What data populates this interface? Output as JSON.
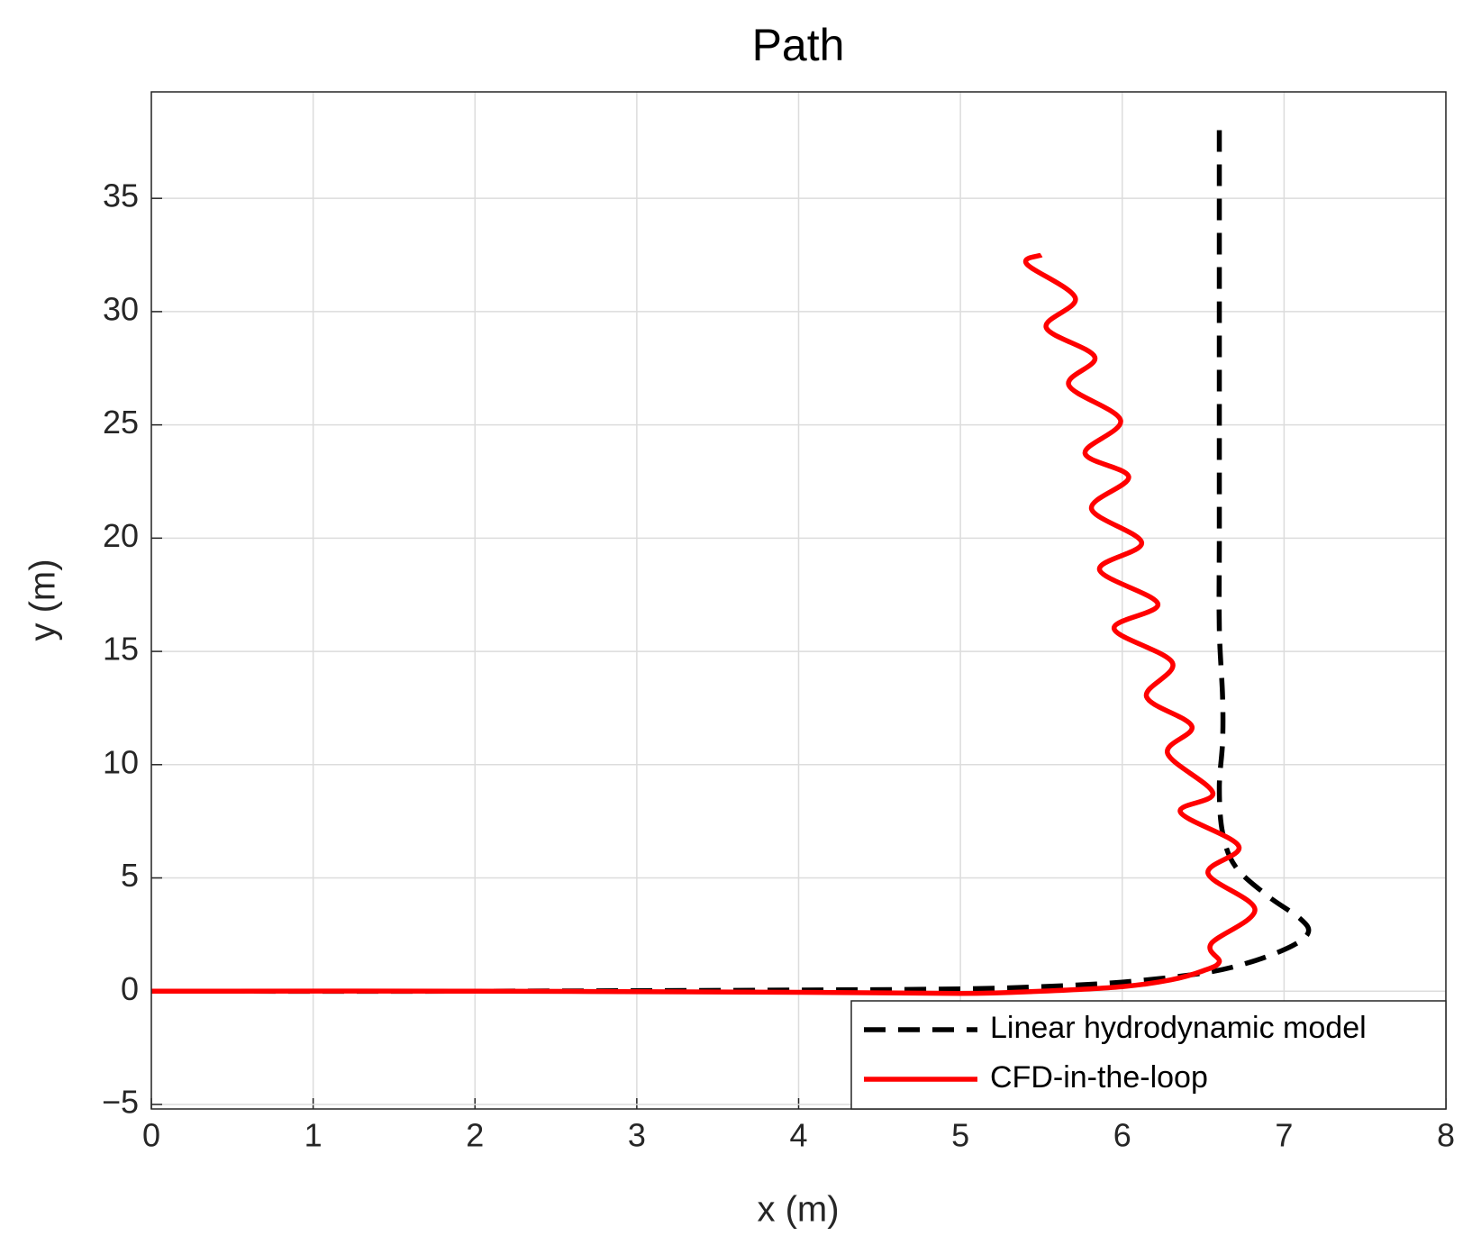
{
  "chart_data": {
    "type": "line",
    "title": "Path",
    "xlabel": "x (m)",
    "ylabel": "y (m)",
    "xlim": [
      0,
      8
    ],
    "ylim": [
      -5.2,
      39.7
    ],
    "xticks": [
      0,
      1,
      2,
      3,
      4,
      5,
      6,
      7,
      8
    ],
    "yticks": [
      {
        "value": -5,
        "label": "−5"
      },
      0,
      5,
      10,
      15,
      20,
      25,
      30,
      35
    ],
    "grid": true,
    "legend": "lower right",
    "series": [
      {
        "name": "Linear hydrodynamic model",
        "color": "#000000",
        "linestyle": "dashed",
        "x": [
          0,
          2,
          4,
          5,
          5.5,
          6,
          6.5,
          6.8,
          7.05,
          7.15,
          7.1,
          6.9,
          6.7,
          6.62,
          6.6,
          6.62,
          6.62,
          6.6,
          6.6,
          6.6,
          6.6,
          6.6,
          6.6
        ],
        "values": [
          0,
          0,
          0.05,
          0.1,
          0.2,
          0.4,
          0.8,
          1.3,
          2.0,
          2.6,
          3.2,
          4.2,
          5.5,
          7,
          9,
          11,
          13,
          16,
          20,
          25,
          30,
          35,
          38.5
        ]
      },
      {
        "name": "CFD-in-the-loop",
        "color": "#ff0000",
        "linestyle": "solid",
        "x": [
          0,
          2,
          4,
          5,
          5.5,
          6,
          6.3,
          6.5,
          6.6,
          6.55,
          6.82,
          6.53,
          6.72,
          6.36,
          6.56,
          6.28,
          6.43,
          6.15,
          6.31,
          5.95,
          6.22,
          5.86,
          6.12,
          5.81,
          6.04,
          5.77,
          5.99,
          5.67,
          5.83,
          5.53,
          5.71,
          5.41,
          5.5
        ],
        "values": [
          0,
          0,
          -0.05,
          -0.1,
          0,
          0.2,
          0.5,
          0.9,
          1.3,
          2.1,
          3.6,
          5.2,
          6.4,
          7.9,
          8.75,
          10.5,
          11.7,
          13,
          14.5,
          16,
          17.1,
          18.6,
          19.8,
          21.3,
          22.7,
          23.75,
          25.2,
          26.75,
          28,
          29.3,
          30.6,
          32.1,
          32.5
        ]
      }
    ]
  }
}
